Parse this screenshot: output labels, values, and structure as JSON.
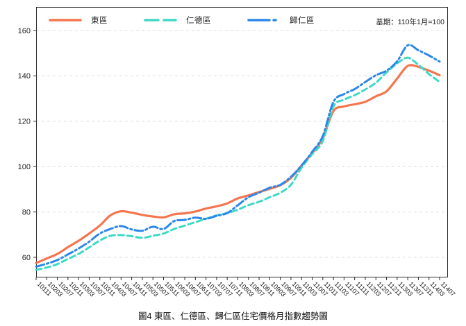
{
  "legend": {
    "items": [
      {
        "label": "東區",
        "color": "#f4764f",
        "style": "solid"
      },
      {
        "label": "仁德區",
        "color": "#3dd9c6",
        "style": "dashed"
      },
      {
        "label": "歸仁區",
        "color": "#2b87ea",
        "style": "dashdot"
      }
    ]
  },
  "annotation": "基期：110年1月=100",
  "caption": "圖4 東區、仁德區、歸仁區住宅價格月指數趨勢圖",
  "chart_data": {
    "type": "line",
    "title": "圖4 東區、仁德區、歸仁區住宅價格月指數趨勢圖",
    "base_note": "基期：110年1月=100",
    "x_note": "ROC year+month labels (yyymm), monthly index, tick every 4 months",
    "x_tick_labels": [
      "10111",
      "10203",
      "10207",
      "10211",
      "10303",
      "10307",
      "10311",
      "10403",
      "10407",
      "10411",
      "10503",
      "10507",
      "10511",
      "10603",
      "10607",
      "10611",
      "10703",
      "10707",
      "10711",
      "10803",
      "10807",
      "10811",
      "10903",
      "10907",
      "10911",
      "11003",
      "11007",
      "11011",
      "11103",
      "11107",
      "11111",
      "11203",
      "11207",
      "11211",
      "11303",
      "11307",
      "11311",
      "11403",
      "11407"
    ],
    "y_ticks": [
      60,
      80,
      100,
      120,
      140,
      160
    ],
    "ylim": [
      51,
      170
    ],
    "grid": "horizontal dashed light gray",
    "legend_position": "top-left inside plot, frameless",
    "series": [
      {
        "name": "東區",
        "color": "#f4764f",
        "dash": "solid",
        "values": [
          57.5,
          59.5,
          61.5,
          64.5,
          67.3,
          70.5,
          74.0,
          78.5,
          80.3,
          79.7,
          78.7,
          78.0,
          77.6,
          79.0,
          79.4,
          80.2,
          81.5,
          82.5,
          83.8,
          86.0,
          87.3,
          88.8,
          90.2,
          91.8,
          95.0,
          100.5,
          106.0,
          112.5,
          124.5,
          126.5,
          127.5,
          128.6,
          131.0,
          133.2,
          138.8,
          144.4,
          144.0,
          142.3,
          140.3
        ]
      },
      {
        "name": "仁德區",
        "color": "#3dd9c6",
        "dash": "dashed",
        "values": [
          54.5,
          55.5,
          57.0,
          59.3,
          61.5,
          64.4,
          67.4,
          69.5,
          69.8,
          69.3,
          68.6,
          69.5,
          70.5,
          72.5,
          74.0,
          75.5,
          77.0,
          78.5,
          79.5,
          81.0,
          83.0,
          84.5,
          86.5,
          88.5,
          92.0,
          99.5,
          105.5,
          111.3,
          126.5,
          129.5,
          131.5,
          134.0,
          137.0,
          141.5,
          145.5,
          148.0,
          144.9,
          140.8,
          137.3
        ]
      },
      {
        "name": "歸仁區",
        "color": "#2b87ea",
        "dash": "dashdot",
        "values": [
          55.9,
          57.2,
          58.8,
          61.3,
          63.9,
          66.9,
          70.5,
          72.5,
          73.8,
          72.3,
          71.7,
          73.5,
          72.5,
          76.0,
          76.5,
          77.5,
          77.0,
          78.3,
          79.5,
          83.0,
          86.5,
          88.5,
          90.7,
          92.0,
          95.5,
          100.5,
          106.5,
          113.5,
          128.5,
          132.0,
          134.2,
          137.3,
          140.3,
          142.3,
          146.4,
          153.5,
          151.3,
          149.0,
          146.3
        ]
      }
    ]
  }
}
